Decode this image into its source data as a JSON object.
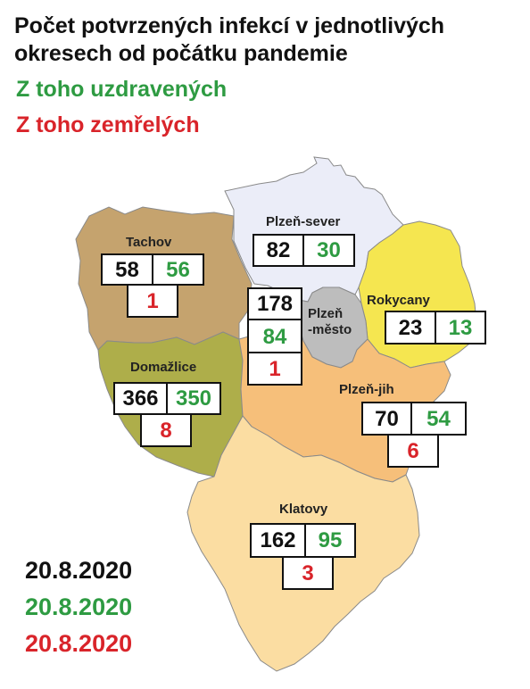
{
  "title_line1": "Počet potvrzených infekcí v jednotlivých",
  "title_line2": "okresech od počátku pandemie",
  "legend_recovered": "Z toho uzdravených",
  "legend_deaths": "Z toho zemřelých",
  "colors": {
    "confirmed": "#111111",
    "recovered": "#2e9b42",
    "deaths": "#d9242a"
  },
  "districts": {
    "tachov": {
      "name": "Tachov",
      "confirmed": "58",
      "recovered": "56",
      "deaths": "1",
      "color": "#c5a36e"
    },
    "plzen_sever": {
      "name": "Plzeň-sever",
      "confirmed": "82",
      "recovered": "30",
      "deaths": "",
      "color": "#ebedf8"
    },
    "plzen_mesto": {
      "name_line1": "Plzeň",
      "name_line2": "-město",
      "confirmed": "178",
      "recovered": "84",
      "deaths": "1",
      "color": "#bdbdbd"
    },
    "rokycany": {
      "name": "Rokycany",
      "confirmed": "23",
      "recovered": "13",
      "deaths": "",
      "color": "#f5e650"
    },
    "domazlice": {
      "name": "Domažlice",
      "confirmed": "366",
      "recovered": "350",
      "deaths": "8",
      "color": "#aeae4a"
    },
    "plzen_jih": {
      "name": "Plzeň-jih",
      "confirmed": "70",
      "recovered": "54",
      "deaths": "6",
      "color": "#f6bf7a"
    },
    "klatovy": {
      "name": "Klatovy",
      "confirmed": "162",
      "recovered": "95",
      "deaths": "3",
      "color": "#fbdda2"
    }
  },
  "dates": {
    "confirmed": "20.8.2020",
    "recovered": "20.8.2020",
    "deaths": "20.8.2020"
  }
}
